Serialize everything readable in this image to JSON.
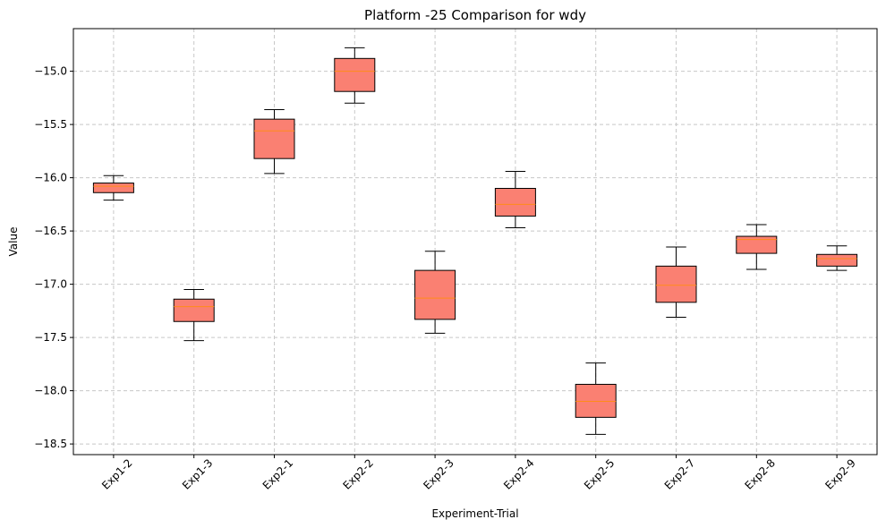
{
  "chart_data": {
    "type": "box",
    "title": "Platform -25 Comparison for wdy",
    "xlabel": "Experiment-Trial",
    "ylabel": "Value",
    "ylim": [
      -18.6,
      -14.6
    ],
    "yticks": [
      -15.0,
      -15.5,
      -16.0,
      -16.5,
      -17.0,
      -17.5,
      -18.0,
      -18.5
    ],
    "grid": true,
    "colors": {
      "box_fill": "#fa8072",
      "median": "#ff8c1a",
      "edge": "#000000",
      "grid": "#c8c8c8"
    },
    "categories": [
      "Exp1-2",
      "Exp1-3",
      "Exp2-1",
      "Exp2-2",
      "Exp2-3",
      "Exp2-4",
      "Exp2-5",
      "Exp2-7",
      "Exp2-8",
      "Exp2-9"
    ],
    "boxes": [
      {
        "whislo": -16.21,
        "q1": -16.14,
        "med": -16.08,
        "q3": -16.05,
        "whishi": -15.98
      },
      {
        "whislo": -17.53,
        "q1": -17.35,
        "med": -17.21,
        "q3": -17.14,
        "whishi": -17.05
      },
      {
        "whislo": -15.96,
        "q1": -15.82,
        "med": -15.56,
        "q3": -15.45,
        "whishi": -15.36
      },
      {
        "whislo": -15.3,
        "q1": -15.19,
        "med": -15.0,
        "q3": -14.88,
        "whishi": -14.78
      },
      {
        "whislo": -17.46,
        "q1": -17.33,
        "med": -17.13,
        "q3": -16.87,
        "whishi": -16.69
      },
      {
        "whislo": -16.47,
        "q1": -16.36,
        "med": -16.25,
        "q3": -16.1,
        "whishi": -15.94
      },
      {
        "whislo": -18.41,
        "q1": -18.25,
        "med": -18.1,
        "q3": -17.94,
        "whishi": -17.74
      },
      {
        "whislo": -17.31,
        "q1": -17.17,
        "med": -17.01,
        "q3": -16.83,
        "whishi": -16.65
      },
      {
        "whislo": -16.86,
        "q1": -16.71,
        "med": -16.58,
        "q3": -16.55,
        "whishi": -16.44
      },
      {
        "whislo": -16.87,
        "q1": -16.83,
        "med": -16.76,
        "q3": -16.72,
        "whishi": -16.64
      }
    ]
  }
}
